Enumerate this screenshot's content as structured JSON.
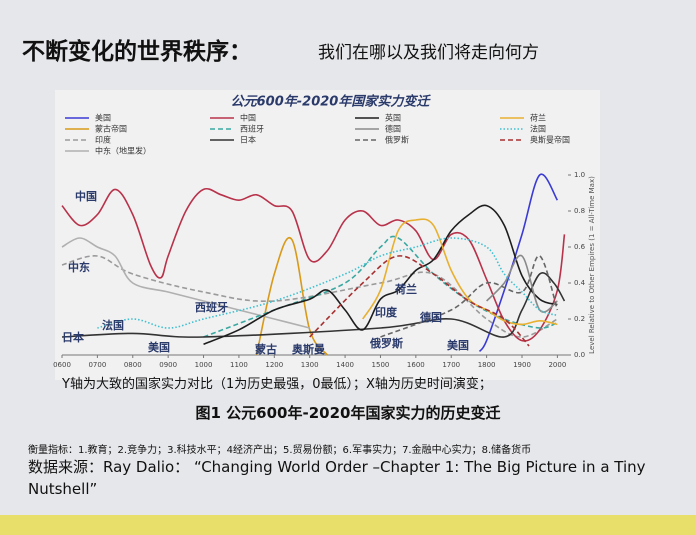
{
  "slide": {
    "title": "不断变化的世界秩序：",
    "subtitle": "我们在哪以及我们将走向何方",
    "axis_note": "Y轴为大致的国家实力对比（1为历史最强，0最低）；X轴为历史时间演变；",
    "figure_caption": "图1 公元600年-2020年国家实力的历史变迁",
    "metrics": "衡量指标：1.教育；2.竞争力；3.科技水平；4经济产出；5.贸易份额；6.军事实力；7.金融中心实力；8.储备货币",
    "source": "数据来源：Ray Dalio： “Changing World Order –Chapter 1: The Big Picture in a Tiny Nutshell”"
  },
  "chart_data": {
    "type": "line",
    "title": "公元600年-2020年国家实力变迁",
    "y_label": "Level Relative to Other Empires (1 = All-Time Max)",
    "xlim": [
      600,
      2030
    ],
    "ylim": [
      0,
      1
    ],
    "xticks": [
      {
        "value": 600,
        "label": "0600"
      },
      {
        "value": 700,
        "label": "0700"
      },
      {
        "value": 800,
        "label": "0800"
      },
      {
        "value": 900,
        "label": "0900"
      },
      1000,
      1100,
      1200,
      1300,
      1400,
      1500,
      1600,
      1700,
      1800,
      1900,
      2000
    ],
    "yticks": [
      {
        "value": 0,
        "label": "0.0"
      },
      0.2,
      0.4,
      0.6,
      0.8,
      {
        "value": 1,
        "label": "1.0"
      }
    ],
    "series": [
      {
        "name": "美国",
        "color": "#3b3bd4",
        "dash": "solid",
        "x": [
          1780,
          1800,
          1850,
          1900,
          1950,
          2000
        ],
        "values": [
          0.02,
          0.08,
          0.36,
          0.67,
          1.0,
          0.86
        ]
      },
      {
        "name": "蒙古帝国",
        "color": "#d89a18",
        "dash": "solid",
        "x": [
          1150,
          1200,
          1250,
          1300,
          1350
        ],
        "values": [
          0.0,
          0.45,
          0.64,
          0.14,
          0.0
        ]
      },
      {
        "name": "印度",
        "color": "#9a9a9a",
        "dash": "dash",
        "x": [
          600,
          700,
          800,
          1000,
          1200,
          1500,
          1650,
          1800,
          1900,
          2000
        ],
        "values": [
          0.5,
          0.55,
          0.45,
          0.35,
          0.3,
          0.4,
          0.45,
          0.2,
          0.1,
          0.2
        ]
      },
      {
        "name": "中东（地里发）",
        "color": "#b0b0b0",
        "dash": "solid",
        "x": [
          600,
          650,
          700,
          750,
          800,
          900,
          1000,
          1100,
          1200,
          1300
        ],
        "values": [
          0.6,
          0.65,
          0.6,
          0.55,
          0.4,
          0.35,
          0.3,
          0.25,
          0.2,
          0.15
        ]
      },
      {
        "name": "中国",
        "color": "#b8324a",
        "dash": "solid",
        "x": [
          600,
          650,
          700,
          750,
          800,
          850,
          880,
          900,
          950,
          1000,
          1050,
          1100,
          1150,
          1200,
          1250,
          1300,
          1350,
          1400,
          1450,
          1500,
          1550,
          1600,
          1650,
          1700,
          1750,
          1800,
          1850,
          1900,
          1950,
          2000,
          2020
        ],
        "values": [
          0.83,
          0.72,
          0.78,
          0.92,
          0.78,
          0.5,
          0.43,
          0.55,
          0.8,
          0.92,
          0.89,
          0.86,
          0.89,
          0.83,
          0.8,
          0.53,
          0.58,
          0.75,
          0.8,
          0.72,
          0.75,
          0.69,
          0.53,
          0.67,
          0.64,
          0.42,
          0.19,
          0.08,
          0.14,
          0.36,
          0.67
        ]
      },
      {
        "name": "西班牙",
        "color": "#3aa8a0",
        "dash": "dash",
        "x": [
          1000,
          1200,
          1400,
          1500,
          1550,
          1650,
          1750,
          1850,
          1950,
          2000
        ],
        "values": [
          0.1,
          0.25,
          0.4,
          0.6,
          0.65,
          0.45,
          0.3,
          0.2,
          0.15,
          0.18
        ]
      },
      {
        "name": "日本",
        "color": "#333333",
        "dash": "solid",
        "x": [
          600,
          800,
          1000,
          1500,
          1700,
          1850,
          1900,
          1950,
          1990,
          2020
        ],
        "values": [
          0.1,
          0.12,
          0.1,
          0.15,
          0.2,
          0.1,
          0.25,
          0.45,
          0.4,
          0.3
        ]
      },
      {
        "name": "英国",
        "color": "#1e1e1e",
        "dash": "solid",
        "x": [
          1000,
          1100,
          1200,
          1300,
          1350,
          1400,
          1450,
          1500,
          1550,
          1600,
          1650,
          1700,
          1750,
          1800,
          1850,
          1900,
          1950,
          2000
        ],
        "values": [
          0.06,
          0.14,
          0.25,
          0.31,
          0.36,
          0.25,
          0.14,
          0.31,
          0.36,
          0.47,
          0.53,
          0.69,
          0.78,
          0.83,
          0.72,
          0.44,
          0.31,
          0.28
        ]
      },
      {
        "name": "德国",
        "color": "#8a8a8a",
        "dash": "solid",
        "x": [
          1800,
          1850,
          1900,
          1950,
          2000
        ],
        "values": [
          0.3,
          0.4,
          0.55,
          0.25,
          0.3
        ]
      },
      {
        "name": "俄罗斯",
        "color": "#666666",
        "dash": "dash",
        "x": [
          1500,
          1700,
          1800,
          1900,
          1950,
          2000
        ],
        "values": [
          0.1,
          0.25,
          0.4,
          0.35,
          0.55,
          0.25
        ]
      },
      {
        "name": "荷兰",
        "color": "#e8b030",
        "dash": "solid",
        "x": [
          1450,
          1500,
          1550,
          1600,
          1650,
          1700,
          1750,
          1800,
          1850,
          1900,
          1950,
          2000
        ],
        "values": [
          0.2,
          0.36,
          0.69,
          0.75,
          0.72,
          0.47,
          0.31,
          0.25,
          0.19,
          0.17,
          0.19,
          0.17
        ]
      },
      {
        "name": "法国",
        "color": "#40c0d0",
        "dash": "dot",
        "x": [
          700,
          800,
          900,
          1000,
          1200,
          1400,
          1500,
          1600,
          1700,
          1800,
          1850,
          1900,
          1950,
          2000
        ],
        "values": [
          0.15,
          0.2,
          0.15,
          0.2,
          0.3,
          0.45,
          0.55,
          0.6,
          0.65,
          0.6,
          0.45,
          0.35,
          0.25,
          0.22
        ]
      },
      {
        "name": "奥斯曼帝国",
        "color": "#a83030",
        "dash": "dash",
        "x": [
          1300,
          1450,
          1550,
          1650,
          1750,
          1850,
          1920
        ],
        "values": [
          0.1,
          0.4,
          0.55,
          0.45,
          0.3,
          0.2,
          0.05
        ]
      }
    ],
    "annotations": [
      "中国",
      "中东",
      "日本",
      "法国",
      "美国",
      "西班牙",
      "蒙古",
      "奥斯曼",
      "荷兰",
      "印度",
      "俄罗斯",
      "德国",
      "美国"
    ]
  }
}
